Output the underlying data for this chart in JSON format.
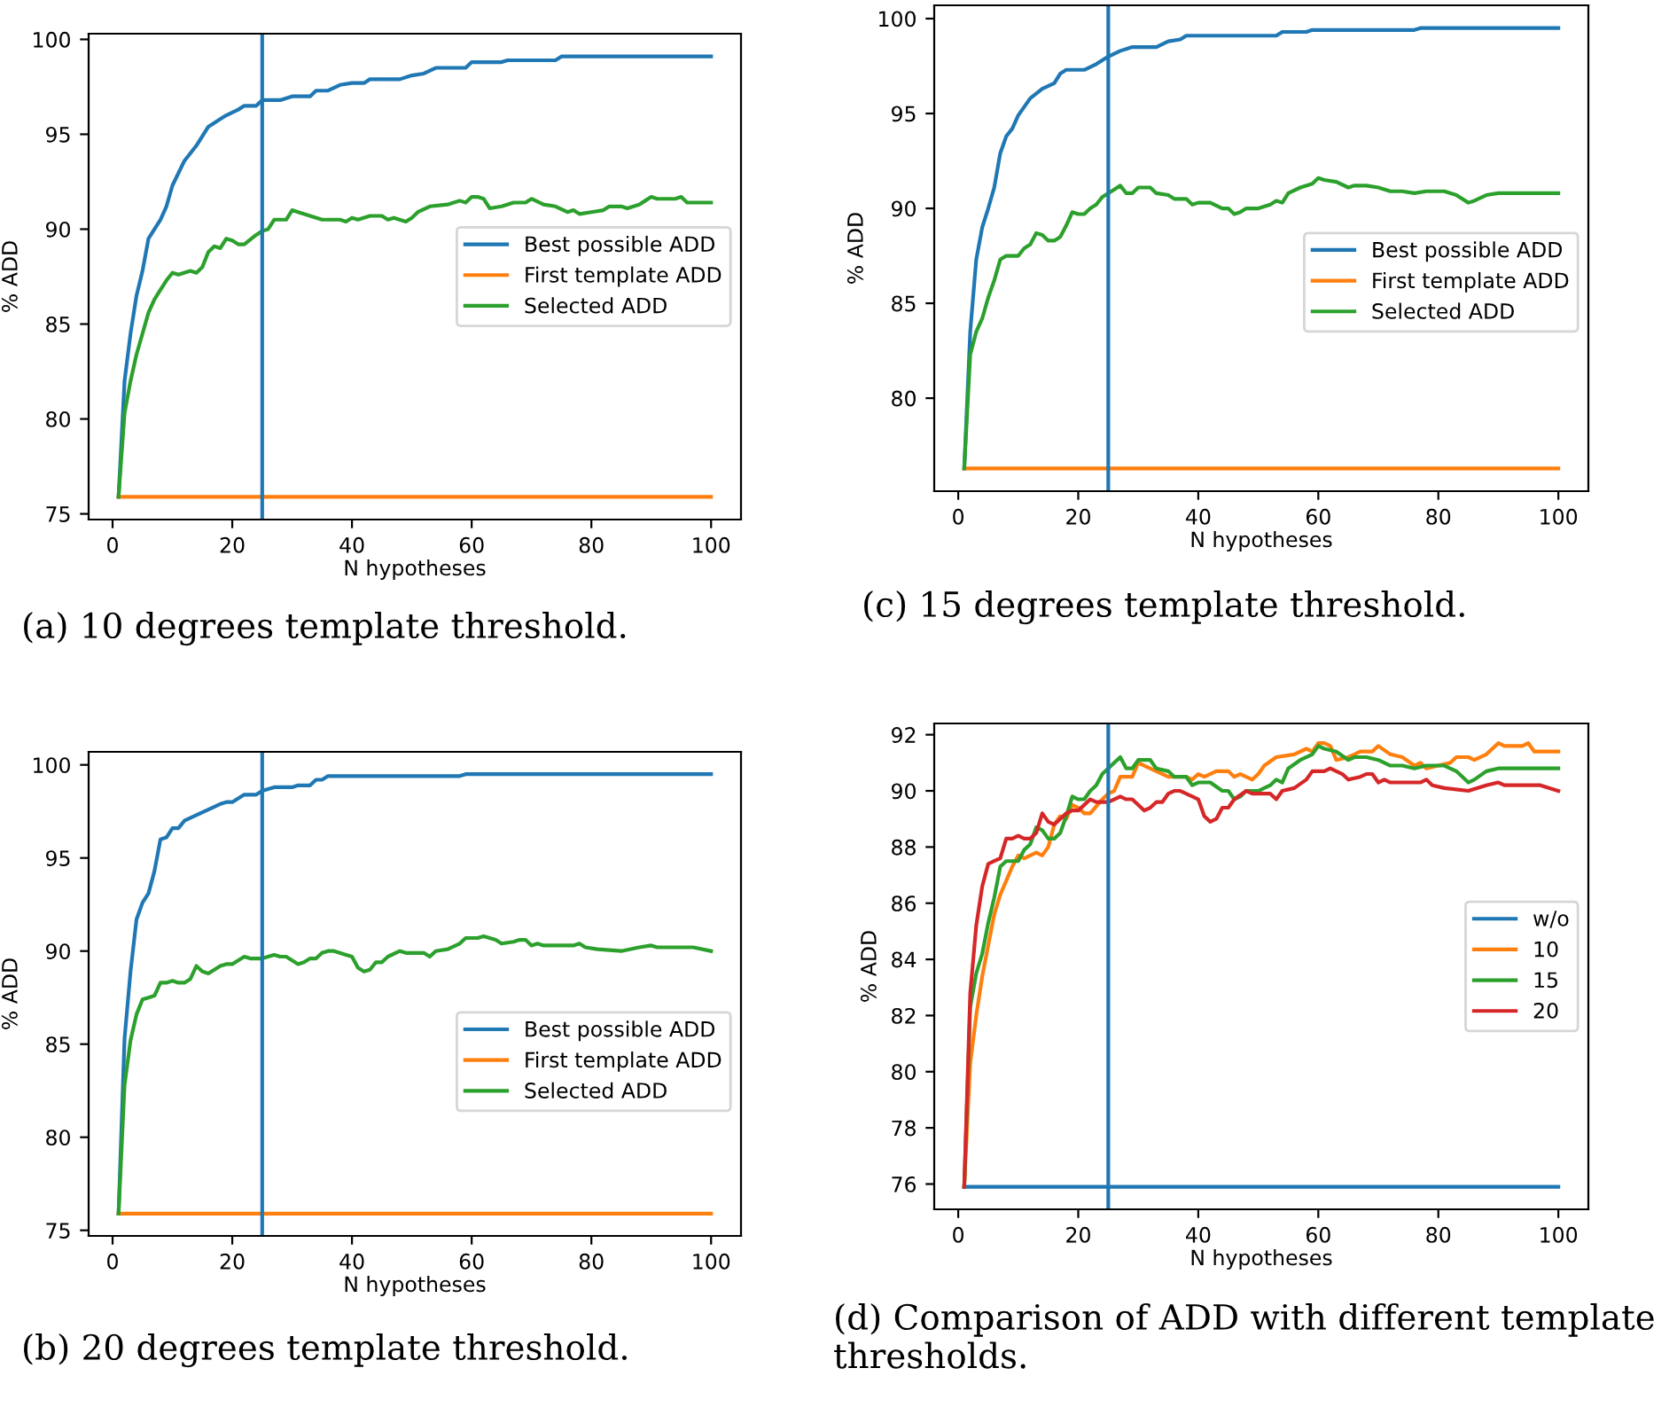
{
  "chart_data": [
    {
      "type": "line",
      "xlabel": "N hypotheses",
      "ylabel": "% ADD",
      "xlim": [
        -4,
        105
      ],
      "xticks": [
        0,
        20,
        40,
        60,
        80,
        100
      ],
      "ylim": [
        74.7,
        100.3
      ],
      "yticks": [
        75,
        80,
        85,
        90,
        95,
        100
      ],
      "legend": "right",
      "grid": false,
      "ref_lines": [
        {
          "axis": "x",
          "value": 25,
          "color": "#1f77b4"
        }
      ],
      "annotations": [
        "(a) 10 degrees template threshold."
      ],
      "series": [
        {
          "name": "Best possible ADD",
          "color": "#1f77b4",
          "x": [
            1,
            2,
            3,
            4,
            5,
            6,
            8,
            9,
            10,
            12,
            14,
            16,
            18,
            19,
            21,
            22,
            24,
            25,
            28,
            30,
            33,
            34,
            36,
            38,
            40,
            42,
            43,
            48,
            50,
            52,
            54,
            59,
            60,
            65,
            66,
            74,
            75,
            100
          ],
          "values": [
            75.9,
            82,
            84.5,
            86.5,
            87.8,
            89.5,
            90.5,
            91.2,
            92.3,
            93.6,
            94.4,
            95.4,
            95.8,
            96.0,
            96.3,
            96.5,
            96.5,
            96.8,
            96.8,
            97.0,
            97.0,
            97.3,
            97.3,
            97.6,
            97.7,
            97.7,
            97.9,
            97.9,
            98.1,
            98.2,
            98.5,
            98.5,
            98.8,
            98.8,
            98.9,
            98.9,
            99.1,
            99.1
          ]
        },
        {
          "name": "First template ADD",
          "color": "#ff7f0e",
          "x": [
            1,
            100
          ],
          "values": [
            75.9,
            75.9
          ]
        },
        {
          "name": "Selected ADD",
          "color": "#2ca02c",
          "x": [
            1,
            2,
            3,
            4,
            5,
            6,
            7,
            8,
            9,
            10,
            11,
            13,
            14,
            15,
            16,
            17,
            18,
            19,
            20,
            21,
            22,
            24,
            25,
            26,
            27,
            29,
            30,
            31,
            33,
            35,
            38,
            39,
            40,
            41,
            43,
            45,
            46,
            47,
            49,
            50,
            51,
            53,
            56,
            58,
            59,
            60,
            61,
            62,
            63,
            65,
            67,
            69,
            70,
            72,
            74,
            76,
            77,
            78,
            80,
            82,
            83,
            85,
            86,
            88,
            89,
            90,
            91,
            94,
            95,
            96,
            100
          ],
          "values": [
            75.9,
            80.3,
            82,
            83.4,
            84.5,
            85.6,
            86.3,
            86.8,
            87.3,
            87.7,
            87.6,
            87.8,
            87.7,
            88.0,
            88.8,
            89.1,
            89.0,
            89.5,
            89.4,
            89.2,
            89.2,
            89.7,
            89.9,
            90.0,
            90.5,
            90.5,
            91.0,
            90.9,
            90.7,
            90.5,
            90.5,
            90.4,
            90.6,
            90.5,
            90.7,
            90.7,
            90.5,
            90.6,
            90.4,
            90.6,
            90.9,
            91.2,
            91.3,
            91.5,
            91.4,
            91.7,
            91.7,
            91.6,
            91.1,
            91.2,
            91.4,
            91.4,
            91.6,
            91.3,
            91.2,
            90.9,
            91.0,
            90.8,
            90.9,
            91.0,
            91.2,
            91.2,
            91.1,
            91.3,
            91.5,
            91.7,
            91.6,
            91.6,
            91.7,
            91.4,
            91.4
          ]
        }
      ]
    },
    {
      "type": "line",
      "xlabel": "N hypotheses",
      "ylabel": "% ADD",
      "xlim": [
        -4,
        105
      ],
      "xticks": [
        0,
        20,
        40,
        60,
        80,
        100
      ],
      "ylim": [
        75.1,
        100.7
      ],
      "yticks": [
        80,
        85,
        90,
        95,
        100
      ],
      "legend": "right",
      "grid": false,
      "ref_lines": [
        {
          "axis": "x",
          "value": 25,
          "color": "#1f77b4"
        }
      ],
      "annotations": [
        "(c) 15 degrees template threshold."
      ],
      "series": [
        {
          "name": "Best possible ADD",
          "color": "#1f77b4",
          "x": [
            1,
            2,
            3,
            4,
            5,
            6,
            7,
            8,
            9,
            10,
            12,
            14,
            16,
            17,
            18,
            21,
            23,
            25,
            27,
            28,
            29,
            33,
            35,
            37,
            38,
            53,
            54,
            58,
            59,
            76,
            77,
            100
          ],
          "values": [
            76.3,
            83.5,
            87.3,
            89,
            90,
            91.1,
            92.9,
            93.8,
            94.2,
            94.9,
            95.8,
            96.3,
            96.6,
            97.1,
            97.3,
            97.3,
            97.6,
            98.0,
            98.3,
            98.4,
            98.5,
            98.5,
            98.8,
            98.9,
            99.1,
            99.1,
            99.3,
            99.3,
            99.4,
            99.4,
            99.5,
            99.5
          ]
        },
        {
          "name": "First template ADD",
          "color": "#ff7f0e",
          "x": [
            1,
            100
          ],
          "values": [
            76.3,
            76.3
          ]
        },
        {
          "name": "Selected ADD",
          "color": "#2ca02c",
          "x": [
            1,
            2,
            3,
            4,
            5,
            6,
            7,
            8,
            10,
            11,
            12,
            13,
            14,
            15,
            16,
            17,
            18,
            19,
            20,
            21,
            22,
            23,
            24,
            25,
            26,
            27,
            28,
            29,
            30,
            32,
            33,
            35,
            36,
            38,
            39,
            40,
            42,
            44,
            45,
            46,
            47,
            48,
            50,
            52,
            53,
            54,
            55,
            57,
            59,
            60,
            61,
            63,
            65,
            66,
            68,
            70,
            72,
            74,
            76,
            78,
            81,
            83,
            85,
            86,
            88,
            90,
            100
          ],
          "values": [
            76.3,
            82.3,
            83.5,
            84.2,
            85.3,
            86.2,
            87.3,
            87.5,
            87.5,
            87.9,
            88.1,
            88.7,
            88.6,
            88.3,
            88.3,
            88.5,
            89.1,
            89.8,
            89.7,
            89.7,
            90.0,
            90.2,
            90.6,
            90.8,
            91.0,
            91.2,
            90.8,
            90.8,
            91.1,
            91.1,
            90.8,
            90.7,
            90.5,
            90.5,
            90.2,
            90.3,
            90.3,
            90.0,
            90.0,
            89.7,
            89.8,
            90.0,
            90.0,
            90.2,
            90.4,
            90.3,
            90.8,
            91.1,
            91.3,
            91.6,
            91.5,
            91.4,
            91.1,
            91.2,
            91.2,
            91.1,
            90.9,
            90.9,
            90.8,
            90.9,
            90.9,
            90.7,
            90.3,
            90.4,
            90.7,
            90.8,
            90.8
          ]
        }
      ]
    },
    {
      "type": "line",
      "xlabel": "N hypotheses",
      "ylabel": "% ADD",
      "xlim": [
        -4,
        105
      ],
      "xticks": [
        0,
        20,
        40,
        60,
        80,
        100
      ],
      "ylim": [
        74.7,
        100.7
      ],
      "yticks": [
        75,
        80,
        85,
        90,
        95,
        100
      ],
      "legend": "right",
      "grid": false,
      "ref_lines": [
        {
          "axis": "x",
          "value": 25,
          "color": "#1f77b4"
        }
      ],
      "annotations": [
        "(b) 20 degrees template threshold."
      ],
      "series": [
        {
          "name": "Best possible ADD",
          "color": "#1f77b4",
          "x": [
            1,
            2,
            3,
            4,
            5,
            6,
            7,
            8,
            9,
            10,
            11,
            12,
            14,
            16,
            18,
            19,
            20,
            22,
            24,
            25,
            27,
            30,
            31,
            33,
            34,
            35,
            36,
            58,
            59,
            100
          ],
          "values": [
            75.9,
            85.3,
            88.9,
            91.7,
            92.6,
            93.1,
            94.3,
            96.0,
            96.1,
            96.6,
            96.6,
            97.0,
            97.3,
            97.6,
            97.9,
            98.0,
            98.0,
            98.4,
            98.4,
            98.6,
            98.8,
            98.8,
            98.9,
            98.9,
            99.2,
            99.2,
            99.4,
            99.4,
            99.5,
            99.5
          ]
        },
        {
          "name": "First template ADD",
          "color": "#ff7f0e",
          "x": [
            1,
            100
          ],
          "values": [
            75.9,
            75.9
          ]
        },
        {
          "name": "Selected ADD",
          "color": "#2ca02c",
          "x": [
            1,
            2,
            3,
            4,
            5,
            6,
            7,
            8,
            9,
            10,
            11,
            12,
            13,
            14,
            15,
            16,
            18,
            19,
            20,
            21,
            22,
            23,
            25,
            26,
            27,
            28,
            29,
            31,
            32,
            33,
            34,
            35,
            36,
            37,
            39,
            40,
            41,
            42,
            43,
            44,
            45,
            46,
            48,
            49,
            52,
            53,
            54,
            56,
            58,
            59,
            61,
            62,
            63,
            64,
            65,
            67,
            68,
            69,
            70,
            71,
            72,
            77,
            78,
            79,
            81,
            85,
            88,
            90,
            91,
            97,
            100
          ],
          "values": [
            75.9,
            82.8,
            85.2,
            86.6,
            87.4,
            87.5,
            87.6,
            88.3,
            88.3,
            88.4,
            88.3,
            88.3,
            88.5,
            89.2,
            88.9,
            88.8,
            89.2,
            89.3,
            89.3,
            89.5,
            89.7,
            89.6,
            89.6,
            89.7,
            89.8,
            89.7,
            89.7,
            89.3,
            89.4,
            89.6,
            89.6,
            89.9,
            90.0,
            90.0,
            89.8,
            89.7,
            89.1,
            88.9,
            89.0,
            89.4,
            89.4,
            89.7,
            90.0,
            89.9,
            89.9,
            89.7,
            90.0,
            90.1,
            90.4,
            90.7,
            90.7,
            90.8,
            90.7,
            90.6,
            90.4,
            90.5,
            90.6,
            90.6,
            90.3,
            90.4,
            90.3,
            90.3,
            90.4,
            90.2,
            90.1,
            90.0,
            90.2,
            90.3,
            90.2,
            90.2,
            90.0
          ]
        }
      ]
    },
    {
      "type": "line",
      "xlabel": "N hypotheses",
      "ylabel": "% ADD",
      "xlim": [
        -4,
        105
      ],
      "xticks": [
        0,
        20,
        40,
        60,
        80,
        100
      ],
      "ylim": [
        75.1,
        92.4
      ],
      "yticks": [
        76,
        78,
        80,
        82,
        84,
        86,
        88,
        90,
        92
      ],
      "legend": "right",
      "grid": false,
      "ref_lines": [
        {
          "axis": "x",
          "value": 25,
          "color": "#1f77b4"
        }
      ],
      "annotations": [
        "(d) Comparison of ADD with different template thresholds."
      ],
      "series": [
        {
          "name": "w/o",
          "color": "#1f77b4",
          "x": [
            1,
            100
          ],
          "values": [
            75.9,
            75.9
          ]
        },
        {
          "name": "10",
          "color": "#ff7f0e",
          "x": [
            1,
            2,
            3,
            4,
            5,
            6,
            7,
            8,
            9,
            10,
            11,
            13,
            14,
            15,
            16,
            17,
            18,
            19,
            20,
            21,
            22,
            24,
            25,
            26,
            27,
            29,
            30,
            31,
            33,
            35,
            38,
            39,
            40,
            41,
            43,
            45,
            46,
            47,
            49,
            50,
            51,
            53,
            56,
            58,
            59,
            60,
            61,
            62,
            63,
            65,
            67,
            69,
            70,
            72,
            74,
            76,
            77,
            78,
            80,
            82,
            83,
            85,
            86,
            88,
            89,
            90,
            91,
            94,
            95,
            96,
            100
          ],
          "values": [
            75.9,
            80.3,
            82,
            83.4,
            84.5,
            85.6,
            86.3,
            86.8,
            87.3,
            87.7,
            87.6,
            87.8,
            87.7,
            88.0,
            88.8,
            89.1,
            89.0,
            89.5,
            89.4,
            89.2,
            89.2,
            89.7,
            89.9,
            90.0,
            90.5,
            90.5,
            91.0,
            90.9,
            90.7,
            90.5,
            90.5,
            90.4,
            90.6,
            90.5,
            90.7,
            90.7,
            90.5,
            90.6,
            90.4,
            90.6,
            90.9,
            91.2,
            91.3,
            91.5,
            91.4,
            91.7,
            91.7,
            91.6,
            91.1,
            91.2,
            91.4,
            91.4,
            91.6,
            91.3,
            91.2,
            90.9,
            91.0,
            90.8,
            90.9,
            91.0,
            91.2,
            91.2,
            91.1,
            91.3,
            91.5,
            91.7,
            91.6,
            91.6,
            91.7,
            91.4,
            91.4
          ]
        },
        {
          "name": "15",
          "color": "#2ca02c",
          "x": [
            1,
            2,
            3,
            4,
            5,
            6,
            7,
            8,
            10,
            11,
            12,
            13,
            14,
            15,
            16,
            17,
            18,
            19,
            20,
            21,
            22,
            23,
            24,
            25,
            26,
            27,
            28,
            29,
            30,
            32,
            33,
            35,
            36,
            38,
            39,
            40,
            42,
            44,
            45,
            46,
            47,
            48,
            50,
            52,
            53,
            54,
            55,
            57,
            59,
            60,
            61,
            63,
            65,
            66,
            68,
            70,
            72,
            74,
            76,
            78,
            81,
            83,
            85,
            86,
            88,
            90,
            100
          ],
          "values": [
            75.9,
            82.3,
            83.5,
            84.2,
            85.3,
            86.2,
            87.3,
            87.5,
            87.5,
            87.9,
            88.1,
            88.7,
            88.6,
            88.3,
            88.3,
            88.5,
            89.1,
            89.8,
            89.7,
            89.7,
            90.0,
            90.2,
            90.6,
            90.8,
            91.0,
            91.2,
            90.8,
            90.8,
            91.1,
            91.1,
            90.8,
            90.7,
            90.5,
            90.5,
            90.2,
            90.3,
            90.3,
            90.0,
            90.0,
            89.7,
            89.8,
            90.0,
            90.0,
            90.2,
            90.4,
            90.3,
            90.8,
            91.1,
            91.3,
            91.6,
            91.5,
            91.4,
            91.1,
            91.2,
            91.2,
            91.1,
            90.9,
            90.9,
            90.8,
            90.9,
            90.9,
            90.7,
            90.3,
            90.4,
            90.7,
            90.8,
            90.8
          ]
        },
        {
          "name": "20",
          "color": "#d62728",
          "x": [
            1,
            2,
            3,
            4,
            5,
            6,
            7,
            8,
            9,
            10,
            11,
            12,
            13,
            14,
            15,
            16,
            18,
            19,
            20,
            21,
            22,
            23,
            25,
            26,
            27,
            28,
            29,
            31,
            32,
            33,
            34,
            35,
            36,
            37,
            39,
            40,
            41,
            42,
            43,
            44,
            45,
            46,
            48,
            49,
            52,
            53,
            54,
            56,
            58,
            59,
            61,
            62,
            63,
            64,
            65,
            67,
            68,
            69,
            70,
            71,
            72,
            77,
            78,
            79,
            81,
            85,
            88,
            90,
            91,
            97,
            100
          ],
          "values": [
            75.9,
            82.8,
            85.2,
            86.6,
            87.4,
            87.5,
            87.6,
            88.3,
            88.3,
            88.4,
            88.3,
            88.3,
            88.5,
            89.2,
            88.9,
            88.8,
            89.2,
            89.3,
            89.3,
            89.5,
            89.7,
            89.6,
            89.6,
            89.7,
            89.8,
            89.7,
            89.7,
            89.3,
            89.4,
            89.6,
            89.6,
            89.9,
            90.0,
            90.0,
            89.8,
            89.7,
            89.1,
            88.9,
            89.0,
            89.4,
            89.4,
            89.7,
            90.0,
            89.9,
            89.9,
            89.7,
            90.0,
            90.1,
            90.4,
            90.7,
            90.7,
            90.8,
            90.7,
            90.6,
            90.4,
            90.5,
            90.6,
            90.6,
            90.3,
            90.4,
            90.3,
            90.3,
            90.4,
            90.2,
            90.1,
            90.0,
            90.2,
            90.3,
            90.2,
            90.2,
            90.0
          ]
        }
      ]
    }
  ]
}
